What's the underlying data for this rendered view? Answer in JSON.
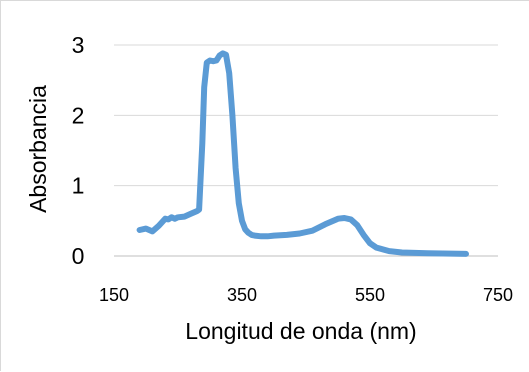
{
  "chart_data": {
    "type": "line",
    "title": "",
    "xlabel": "Longitud de onda (nm)",
    "ylabel": "Absorbancia",
    "xlim": [
      150,
      750
    ],
    "ylim": [
      0,
      3
    ],
    "x_ticks": [
      150,
      350,
      550,
      750
    ],
    "y_ticks": [
      0,
      1,
      2,
      3
    ],
    "x_tick_labels": [
      "150",
      "350",
      "550",
      "750"
    ],
    "y_tick_labels": [
      "0",
      "1",
      "2",
      "3"
    ],
    "grid": "horizontal",
    "legend": "none",
    "series_color": "#5b9bd5",
    "series": [
      {
        "name": "",
        "x": [
          190,
          200,
          205,
          210,
          220,
          230,
          235,
          240,
          245,
          250,
          260,
          270,
          280,
          283,
          288,
          291,
          295,
          300,
          305,
          310,
          315,
          320,
          325,
          330,
          335,
          340,
          345,
          350,
          355,
          360,
          365,
          370,
          380,
          390,
          400,
          420,
          440,
          460,
          480,
          500,
          510,
          520,
          530,
          540,
          550,
          560,
          580,
          600,
          640,
          700
        ],
        "y": [
          0.37,
          0.39,
          0.37,
          0.35,
          0.43,
          0.53,
          0.52,
          0.55,
          0.53,
          0.55,
          0.56,
          0.6,
          0.64,
          0.66,
          1.6,
          2.4,
          2.75,
          2.78,
          2.77,
          2.78,
          2.85,
          2.88,
          2.86,
          2.6,
          2.0,
          1.25,
          0.75,
          0.5,
          0.38,
          0.33,
          0.3,
          0.29,
          0.28,
          0.28,
          0.29,
          0.3,
          0.32,
          0.36,
          0.45,
          0.53,
          0.54,
          0.52,
          0.44,
          0.3,
          0.18,
          0.12,
          0.07,
          0.05,
          0.04,
          0.03
        ]
      }
    ]
  }
}
